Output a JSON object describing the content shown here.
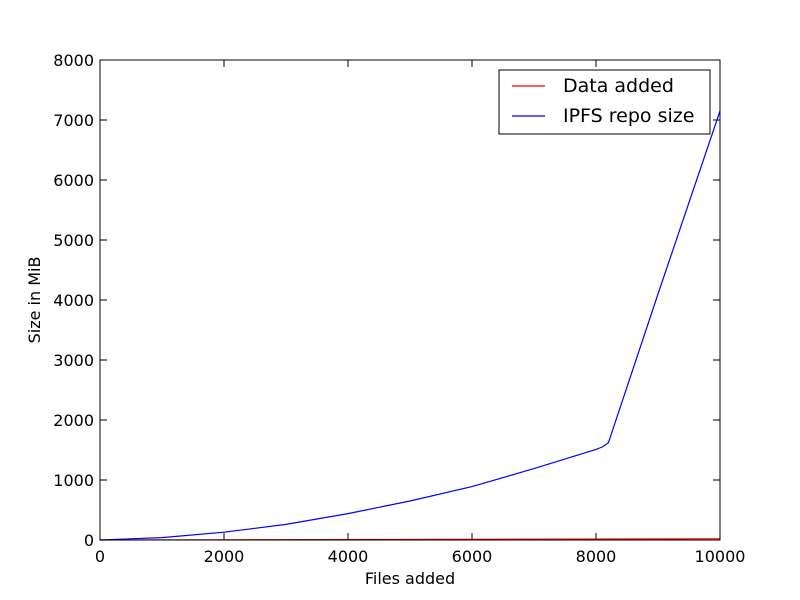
{
  "chart_data": {
    "type": "line",
    "xlabel": "Files added",
    "ylabel": "Size in MiB",
    "xlim": [
      0,
      10000
    ],
    "ylim": [
      0,
      8000
    ],
    "xticks": [
      0,
      2000,
      4000,
      6000,
      8000,
      10000
    ],
    "yticks": [
      0,
      1000,
      2000,
      3000,
      4000,
      5000,
      6000,
      7000,
      8000
    ],
    "grid": false,
    "legend_position": "top-right",
    "series": [
      {
        "name": "Data added",
        "color": "#ff0000",
        "x": [
          0,
          10000
        ],
        "y": [
          0,
          20
        ]
      },
      {
        "name": "IPFS repo size",
        "color": "#0000ff",
        "x": [
          0,
          1000,
          2000,
          3000,
          4000,
          5000,
          6000,
          7000,
          8000,
          8100,
          8200,
          9000,
          10000
        ],
        "y": [
          0,
          40,
          130,
          260,
          440,
          650,
          890,
          1190,
          1510,
          1550,
          1620,
          4100,
          7150
        ]
      }
    ]
  }
}
